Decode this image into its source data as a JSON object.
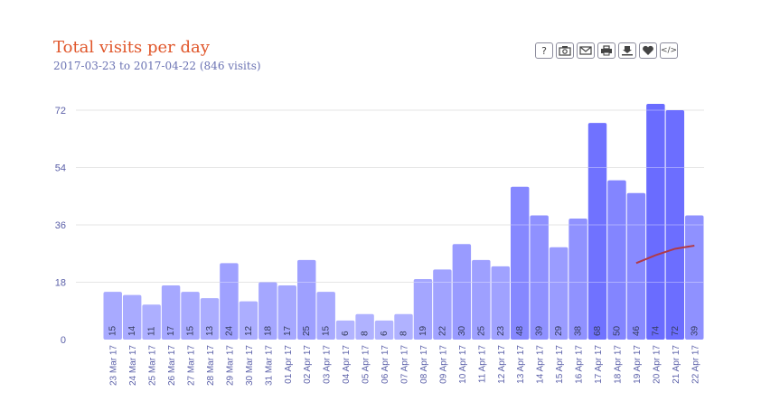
{
  "header": {
    "title": "Total visits per day",
    "subtitle": "2017-03-23 to 2017-04-22 (846 visits)"
  },
  "toolbar": {
    "buttons": [
      {
        "name": "help-button",
        "icon": "help-icon",
        "glyph": "?"
      },
      {
        "name": "camera-button",
        "icon": "camera-icon"
      },
      {
        "name": "email-button",
        "icon": "envelope-icon"
      },
      {
        "name": "print-button",
        "icon": "printer-icon"
      },
      {
        "name": "download-button",
        "icon": "download-icon"
      },
      {
        "name": "favorite-button",
        "icon": "heart-icon"
      },
      {
        "name": "embed-button",
        "icon": "code-icon",
        "glyph": "</>"
      }
    ]
  },
  "colors": {
    "title": "#e0562a",
    "bar_light": "#b3b5ff",
    "bar_dark": "#6a6cff",
    "trend_line": "#b03a48",
    "axis_text": "#5a5fa8"
  },
  "chart_data": {
    "type": "bar",
    "categories": [
      "23 Mar 17",
      "24 Mar 17",
      "25 Mar 17",
      "26 Mar 17",
      "27 Mar 17",
      "28 Mar 17",
      "29 Mar 17",
      "30 Mar 17",
      "31 Mar 17",
      "01 Apr 17",
      "02 Apr 17",
      "03 Apr 17",
      "04 Apr 17",
      "05 Apr 17",
      "06 Apr 17",
      "07 Apr 17",
      "08 Apr 17",
      "09 Apr 17",
      "10 Apr 17",
      "11 Apr 17",
      "12 Apr 17",
      "13 Apr 17",
      "14 Apr 17",
      "15 Apr 17",
      "16 Apr 17",
      "17 Apr 17",
      "18 Apr 17",
      "19 Apr 17",
      "20 Apr 17",
      "21 Apr 17",
      "22 Apr 17"
    ],
    "values": [
      15,
      14,
      11,
      17,
      15,
      13,
      24,
      12,
      18,
      17,
      25,
      15,
      6,
      8,
      6,
      8,
      19,
      22,
      30,
      25,
      23,
      48,
      39,
      29,
      38,
      68,
      50,
      46,
      74,
      72,
      39
    ],
    "yticks": [
      0,
      18,
      36,
      54,
      72
    ],
    "ylim": [
      0,
      74
    ],
    "trend": {
      "categories": [
        "19 Apr 17",
        "20 Apr 17",
        "21 Apr 17",
        "22 Apr 17"
      ],
      "values": [
        24,
        26.5,
        28.5,
        29.5
      ]
    },
    "grid": true,
    "legend": "none",
    "xlabel": "",
    "ylabel": ""
  }
}
